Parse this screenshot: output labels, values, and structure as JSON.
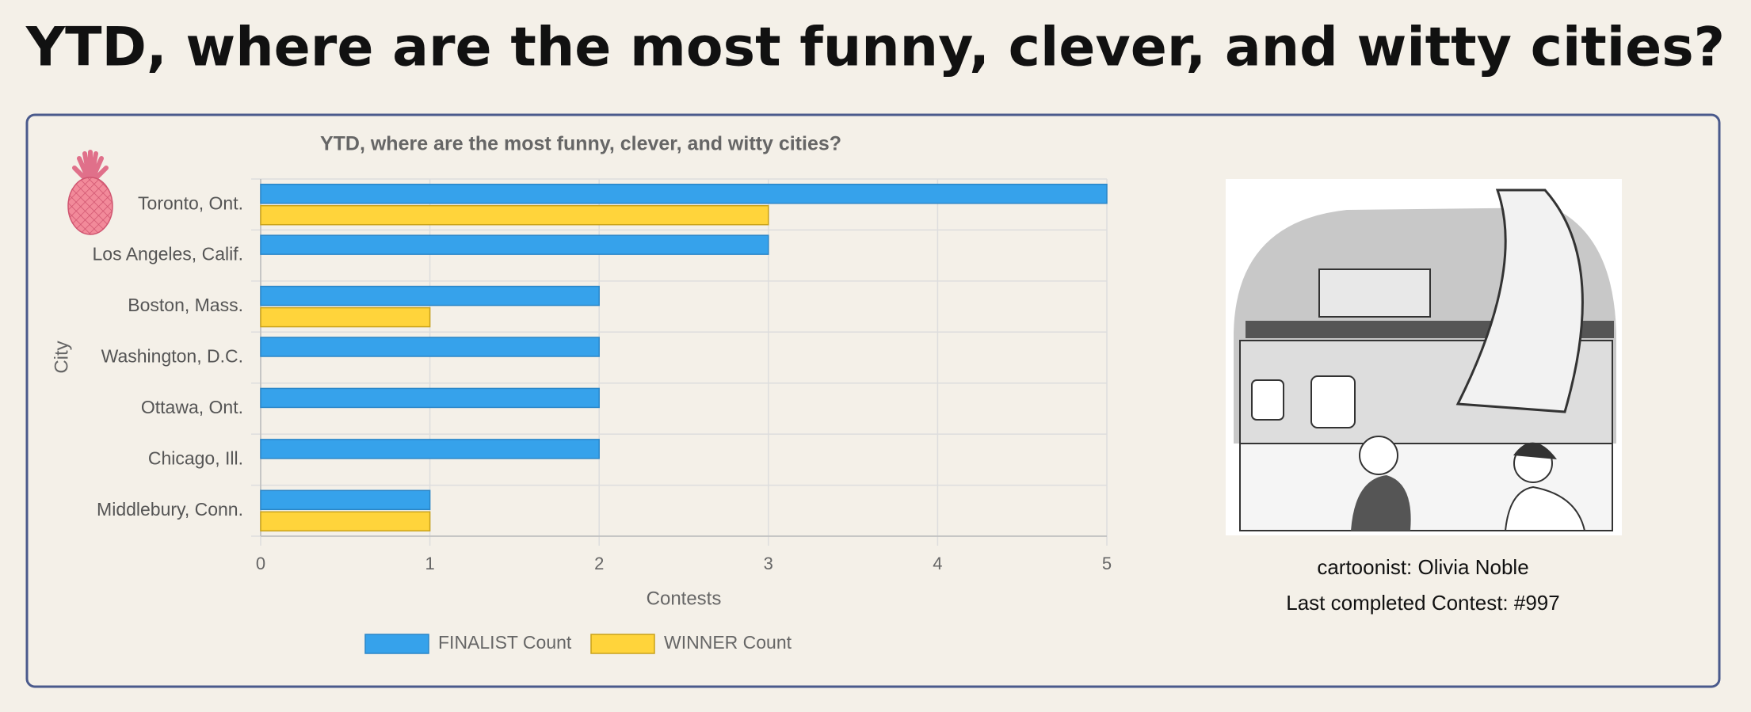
{
  "page_title": "YTD, where are the most funny, clever, and witty cities?",
  "chart_data": {
    "type": "bar",
    "orientation": "horizontal",
    "title": "YTD, where are the most funny, clever, and witty cities?",
    "x_label": "Contests",
    "y_label": "City",
    "categories": [
      "Toronto, Ont.",
      "Los Angeles, Calif.",
      "Boston, Mass.",
      "Washington, D.C.",
      "Ottawa, Ont.",
      "Chicago, Ill.",
      "Middlebury, Conn."
    ],
    "series": [
      {
        "name": "FINALIST Count",
        "color": "#36a2eb",
        "values": [
          5,
          3,
          2,
          2,
          2,
          2,
          1
        ]
      },
      {
        "name": "WINNER Count",
        "color": "#ffd43b",
        "values": [
          3,
          0,
          1,
          0,
          0,
          0,
          1
        ]
      }
    ],
    "xlim": [
      0,
      5
    ],
    "xticks": [
      0,
      1,
      2,
      3,
      4,
      5
    ],
    "grid": true,
    "legend": "bottom"
  },
  "cartoon": {
    "cartoonist": "cartoonist: Olivia Noble",
    "contest": "Last completed Contest: #997"
  }
}
